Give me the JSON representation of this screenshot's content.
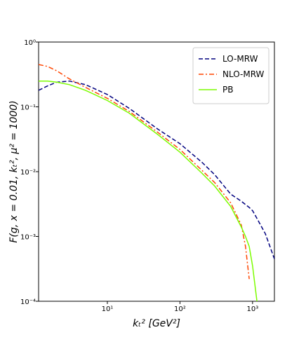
{
  "chart_data": {
    "type": "line",
    "xlabel": "kₜ² [GeV²]",
    "ylabel": "F(g, x = 0.01, kₜ², μ² = 1000)",
    "xlog": true,
    "ylog": true,
    "legend": "upper right",
    "xlim": [
      1.13,
      2000
    ],
    "ylim": [
      0.0001,
      1
    ],
    "xticks": [
      {
        "value": 10,
        "label": "10¹"
      },
      {
        "value": 100,
        "label": "10²"
      },
      {
        "value": 1000,
        "label": "10³"
      }
    ],
    "yticks": [
      {
        "value": 0.0001,
        "label": "10⁻⁴"
      },
      {
        "value": 0.001,
        "label": "10⁻³"
      },
      {
        "value": 0.01,
        "label": "10⁻²"
      },
      {
        "value": 0.1,
        "label": "10⁻¹"
      },
      {
        "value": 1,
        "label": "10⁰"
      }
    ],
    "x": [
      1.13,
      1.5,
      2,
      3,
      5,
      10,
      20,
      50,
      100,
      200,
      300,
      500,
      700,
      800,
      900,
      1000,
      1150,
      1500,
      2000
    ],
    "series": [
      {
        "name": "LO-MRW",
        "color": "#00007f",
        "dash": "dashed",
        "values": [
          0.18,
          0.21,
          0.24,
          0.25,
          0.22,
          0.155,
          0.095,
          0.045,
          0.027,
          0.014,
          0.009,
          0.0045,
          0.0035,
          0.0031,
          0.0028,
          0.0025,
          0.0019,
          0.0011,
          0.00045
        ]
      },
      {
        "name": "NLO-MRW",
        "color": "#ff4500",
        "dash": "dashdot",
        "values": [
          0.45,
          0.42,
          0.36,
          0.27,
          0.2,
          0.135,
          0.085,
          0.04,
          0.022,
          0.0105,
          0.0068,
          0.0033,
          0.0015,
          0.0007,
          0.00022,
          null,
          null,
          null,
          null
        ]
      },
      {
        "name": "PB",
        "color": "#7cfc00",
        "dash": "solid",
        "values": [
          0.25,
          0.25,
          0.24,
          0.22,
          0.18,
          0.125,
          0.08,
          0.037,
          0.02,
          0.0095,
          0.006,
          0.0029,
          0.0014,
          0.001,
          0.0007,
          0.00035,
          0.0001,
          null,
          null
        ]
      }
    ]
  }
}
